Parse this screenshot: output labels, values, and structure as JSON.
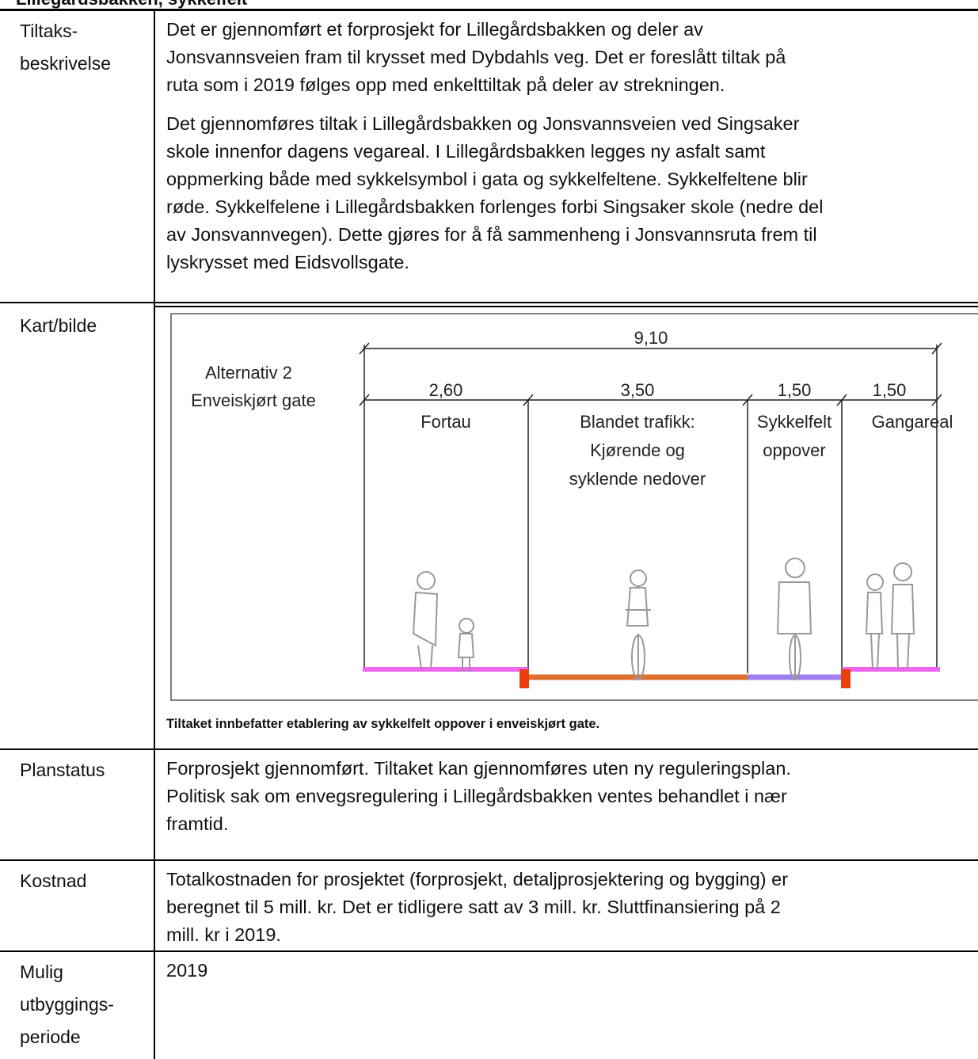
{
  "header": {
    "title": "Lillegårdsbakken, sykkelfelt"
  },
  "table": {
    "rows": [
      {
        "label": [
          "Tiltaks-",
          "beskrivelse"
        ],
        "paragraphs": [
          [
            "Det er gjennomført et forprosjekt for Lillegårdsbakken og deler av",
            "Jonsvannsveien fram til krysset med Dybdahls veg. Det er foreslått tiltak på",
            "ruta som i 2019 følges opp med enkelttiltak på deler av strekningen."
          ],
          [
            "Det gjennomføres tiltak i Lillegårdsbakken og Jonsvannsveien ved Singsaker",
            "skole innenfor dagens vegareal. I Lillegårdsbakken legges ny asfalt samt",
            "oppmerking både med sykkelsymbol i gata og sykkelfeltene. Sykkelfeltene blir",
            "røde. Sykkelfelene i Lillegårdsbakken forlenges forbi Singsaker skole (nedre del",
            "av Jonsvannvegen). Dette gjøres for å få sammenheng i Jonsvannsruta frem til",
            "lyskrysset med Eidsvollsgate."
          ]
        ]
      },
      {
        "label": [
          "Kart/bilde"
        ],
        "figure": {
          "title": [
            "Alternativ 2",
            "Enveiskjørt gate"
          ],
          "total": "9,10",
          "widths": [
            "2,60",
            "3,50",
            "1,50",
            "1,50"
          ],
          "zones": [
            [
              "Fortau"
            ],
            [
              "Blandet trafikk:",
              "Kjørende og",
              "syklende nedover"
            ],
            [
              "Sykkelfelt",
              "oppover"
            ],
            [
              "Gangareal"
            ]
          ]
        },
        "caption": "Tiltaket innbefatter etablering av sykkelfelt oppover i enveiskjørt gate."
      },
      {
        "label": [
          "Planstatus"
        ],
        "paragraphs": [
          [
            "Forprosjekt gjennomført. Tiltaket kan gjennomføres uten ny reguleringsplan.",
            "Politisk sak om envegsregulering i Lillegårdsbakken ventes behandlet i nær",
            "framtid."
          ]
        ]
      },
      {
        "label": [
          "Kostnad"
        ],
        "paragraphs": [
          [
            "Totalkostnaden for prosjektet (forprosjekt, detaljprosjektering og bygging) er",
            "beregnet til 5 mill. kr. Det er tidligere satt av 3 mill. kr. Sluttfinansiering på 2",
            "mill. kr i 2019."
          ]
        ]
      },
      {
        "label": [
          "Mulig",
          "utbyggings-",
          "periode"
        ],
        "paragraphs": [
          [
            "2019"
          ]
        ]
      }
    ]
  }
}
